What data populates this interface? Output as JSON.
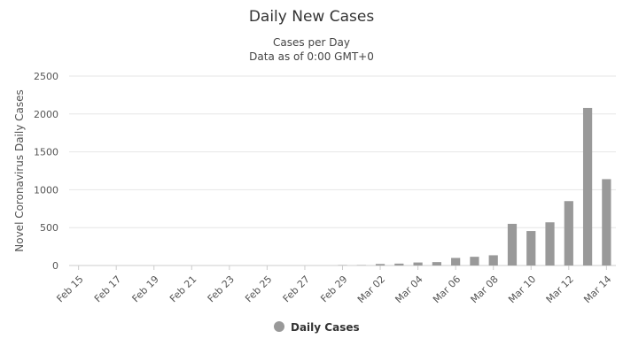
{
  "chart_data": {
    "type": "bar",
    "title": "Daily New Cases",
    "subtitle_lines": [
      "Cases per Day",
      "Data as of 0:00 GMT+0"
    ],
    "ylabel": "Novel Coronavirus Daily Cases",
    "xlabel": "",
    "ylim": [
      0,
      2500
    ],
    "yticks": [
      0,
      500,
      1000,
      1500,
      2000,
      2500
    ],
    "grid": true,
    "legend_position": "bottom",
    "bar_color": "#999999",
    "categories": [
      "Feb 15",
      "Feb 16",
      "Feb 17",
      "Feb 18",
      "Feb 19",
      "Feb 20",
      "Feb 21",
      "Feb 22",
      "Feb 23",
      "Feb 24",
      "Feb 25",
      "Feb 26",
      "Feb 27",
      "Feb 28",
      "Feb 29",
      "Mar 01",
      "Mar 02",
      "Mar 03",
      "Mar 04",
      "Mar 05",
      "Mar 06",
      "Mar 07",
      "Mar 08",
      "Mar 09",
      "Mar 10",
      "Mar 11",
      "Mar 12",
      "Mar 13",
      "Mar 14"
    ],
    "x_tick_labels": [
      "Feb 15",
      "Feb 17",
      "Feb 19",
      "Feb 21",
      "Feb 23",
      "Feb 25",
      "Feb 27",
      "Feb 29",
      "Mar 02",
      "Mar 04",
      "Mar 06",
      "Mar 08",
      "Mar 10",
      "Mar 12",
      "Mar 14"
    ],
    "series": [
      {
        "name": "Daily Cases",
        "values": [
          0,
          0,
          0,
          0,
          0,
          0,
          0,
          0,
          0,
          0,
          0,
          0,
          0,
          0,
          5,
          5,
          20,
          25,
          40,
          45,
          100,
          115,
          135,
          550,
          455,
          570,
          850,
          2080,
          1140
        ]
      }
    ]
  }
}
